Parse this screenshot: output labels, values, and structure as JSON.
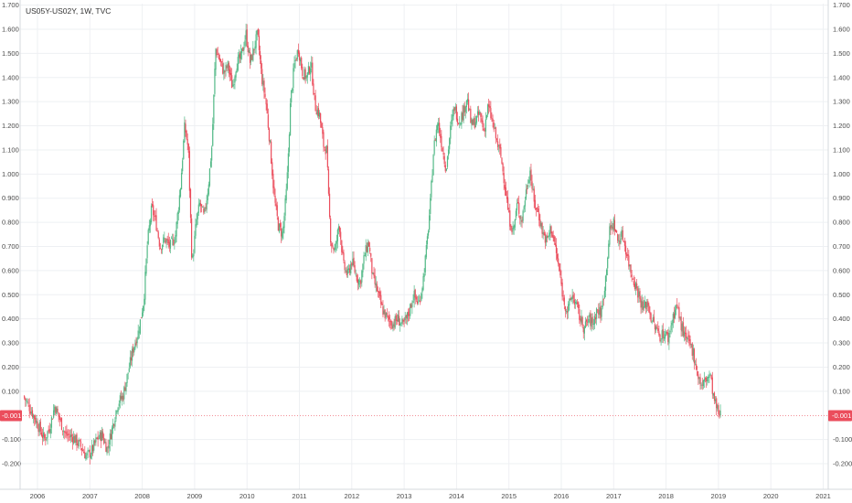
{
  "symbol_label": "US05Y-US02Y, 1W, TVC",
  "last_price_label": "-0.001",
  "colors": {
    "up": "#53b987",
    "down": "#eb4d5c",
    "grid": "#eef0f3",
    "price_tag": "#eb4d5c",
    "axis_text": "#4a4a4a"
  },
  "chart_data": {
    "type": "candlestick",
    "interval": "1W",
    "x_tick_labels": [
      "2006",
      "2007",
      "2008",
      "2009",
      "2010",
      "2011",
      "2012",
      "2013",
      "2014",
      "2015",
      "2016",
      "2017",
      "2018",
      "2019",
      "2020",
      "2021"
    ],
    "y_tick_labels": [
      "1.700",
      "1.600",
      "1.500",
      "1.400",
      "1.300",
      "1.200",
      "1.100",
      "1.000",
      "0.900",
      "0.800",
      "0.700",
      "0.600",
      "0.500",
      "0.400",
      "0.300",
      "0.200",
      "0.100",
      "-0.100",
      "-0.200"
    ],
    "ylim": [
      -0.26,
      1.7
    ],
    "xlim": [
      2005.75,
      2021.1
    ],
    "last_value": -0.001,
    "grid": true,
    "price_path": [
      [
        2005.75,
        0.08
      ],
      [
        2005.9,
        0.02
      ],
      [
        2006.05,
        -0.05
      ],
      [
        2006.15,
        -0.1
      ],
      [
        2006.25,
        -0.05
      ],
      [
        2006.35,
        0.04
      ],
      [
        2006.45,
        -0.02
      ],
      [
        2006.55,
        -0.08
      ],
      [
        2006.7,
        -0.09
      ],
      [
        2006.85,
        -0.13
      ],
      [
        2006.95,
        -0.17
      ],
      [
        2007.05,
        -0.15
      ],
      [
        2007.15,
        -0.1
      ],
      [
        2007.25,
        -0.08
      ],
      [
        2007.35,
        -0.14
      ],
      [
        2007.45,
        -0.05
      ],
      [
        2007.55,
        0.05
      ],
      [
        2007.65,
        0.08
      ],
      [
        2007.75,
        0.18
      ],
      [
        2007.85,
        0.28
      ],
      [
        2007.95,
        0.35
      ],
      [
        2008.05,
        0.48
      ],
      [
        2008.12,
        0.72
      ],
      [
        2008.2,
        0.86
      ],
      [
        2008.28,
        0.8
      ],
      [
        2008.36,
        0.7
      ],
      [
        2008.45,
        0.73
      ],
      [
        2008.55,
        0.7
      ],
      [
        2008.65,
        0.74
      ],
      [
        2008.75,
        0.95
      ],
      [
        2008.83,
        1.2
      ],
      [
        2008.9,
        1.1
      ],
      [
        2008.97,
        0.62
      ],
      [
        2009.05,
        0.8
      ],
      [
        2009.12,
        0.88
      ],
      [
        2009.2,
        0.82
      ],
      [
        2009.28,
        0.95
      ],
      [
        2009.35,
        1.12
      ],
      [
        2009.42,
        1.52
      ],
      [
        2009.5,
        1.47
      ],
      [
        2009.58,
        1.42
      ],
      [
        2009.66,
        1.45
      ],
      [
        2009.74,
        1.36
      ],
      [
        2009.82,
        1.46
      ],
      [
        2009.9,
        1.48
      ],
      [
        2010.0,
        1.58
      ],
      [
        2010.08,
        1.46
      ],
      [
        2010.15,
        1.52
      ],
      [
        2010.22,
        1.58
      ],
      [
        2010.3,
        1.4
      ],
      [
        2010.38,
        1.3
      ],
      [
        2010.46,
        1.12
      ],
      [
        2010.54,
        0.9
      ],
      [
        2010.62,
        0.78
      ],
      [
        2010.7,
        0.75
      ],
      [
        2010.78,
        0.95
      ],
      [
        2010.85,
        1.3
      ],
      [
        2010.92,
        1.45
      ],
      [
        2011.0,
        1.52
      ],
      [
        2011.08,
        1.42
      ],
      [
        2011.16,
        1.4
      ],
      [
        2011.24,
        1.46
      ],
      [
        2011.32,
        1.28
      ],
      [
        2011.4,
        1.25
      ],
      [
        2011.48,
        1.12
      ],
      [
        2011.54,
        1.1
      ],
      [
        2011.58,
        0.88
      ],
      [
        2011.62,
        0.72
      ],
      [
        2011.7,
        0.68
      ],
      [
        2011.78,
        0.8
      ],
      [
        2011.86,
        0.62
      ],
      [
        2011.94,
        0.58
      ],
      [
        2012.02,
        0.64
      ],
      [
        2012.1,
        0.58
      ],
      [
        2012.18,
        0.55
      ],
      [
        2012.26,
        0.66
      ],
      [
        2012.34,
        0.72
      ],
      [
        2012.42,
        0.57
      ],
      [
        2012.5,
        0.52
      ],
      [
        2012.6,
        0.44
      ],
      [
        2012.7,
        0.4
      ],
      [
        2012.8,
        0.38
      ],
      [
        2012.9,
        0.4
      ],
      [
        2013.0,
        0.37
      ],
      [
        2013.1,
        0.42
      ],
      [
        2013.2,
        0.5
      ],
      [
        2013.3,
        0.46
      ],
      [
        2013.38,
        0.56
      ],
      [
        2013.45,
        0.7
      ],
      [
        2013.52,
        0.88
      ],
      [
        2013.58,
        1.1
      ],
      [
        2013.66,
        1.22
      ],
      [
        2013.74,
        1.12
      ],
      [
        2013.82,
        1.02
      ],
      [
        2013.9,
        1.18
      ],
      [
        2013.98,
        1.28
      ],
      [
        2014.06,
        1.22
      ],
      [
        2014.14,
        1.25
      ],
      [
        2014.22,
        1.32
      ],
      [
        2014.3,
        1.2
      ],
      [
        2014.38,
        1.22
      ],
      [
        2014.46,
        1.25
      ],
      [
        2014.54,
        1.18
      ],
      [
        2014.62,
        1.28
      ],
      [
        2014.7,
        1.22
      ],
      [
        2014.78,
        1.14
      ],
      [
        2014.86,
        1.08
      ],
      [
        2014.94,
        0.96
      ],
      [
        2015.02,
        0.82
      ],
      [
        2015.1,
        0.76
      ],
      [
        2015.18,
        0.88
      ],
      [
        2015.26,
        0.8
      ],
      [
        2015.34,
        0.92
      ],
      [
        2015.42,
        1.02
      ],
      [
        2015.5,
        0.88
      ],
      [
        2015.58,
        0.84
      ],
      [
        2015.66,
        0.76
      ],
      [
        2015.74,
        0.72
      ],
      [
        2015.82,
        0.78
      ],
      [
        2015.9,
        0.7
      ],
      [
        2015.98,
        0.6
      ],
      [
        2016.06,
        0.48
      ],
      [
        2016.14,
        0.43
      ],
      [
        2016.22,
        0.5
      ],
      [
        2016.3,
        0.46
      ],
      [
        2016.38,
        0.4
      ],
      [
        2016.46,
        0.36
      ],
      [
        2016.54,
        0.4
      ],
      [
        2016.62,
        0.38
      ],
      [
        2016.7,
        0.44
      ],
      [
        2016.78,
        0.42
      ],
      [
        2016.86,
        0.56
      ],
      [
        2016.94,
        0.76
      ],
      [
        2017.02,
        0.8
      ],
      [
        2017.1,
        0.72
      ],
      [
        2017.18,
        0.75
      ],
      [
        2017.26,
        0.68
      ],
      [
        2017.34,
        0.6
      ],
      [
        2017.42,
        0.55
      ],
      [
        2017.5,
        0.5
      ],
      [
        2017.58,
        0.44
      ],
      [
        2017.66,
        0.47
      ],
      [
        2017.74,
        0.4
      ],
      [
        2017.82,
        0.36
      ],
      [
        2017.9,
        0.33
      ],
      [
        2017.98,
        0.34
      ],
      [
        2018.06,
        0.32
      ],
      [
        2018.14,
        0.4
      ],
      [
        2018.22,
        0.46
      ],
      [
        2018.3,
        0.38
      ],
      [
        2018.38,
        0.32
      ],
      [
        2018.46,
        0.3
      ],
      [
        2018.54,
        0.26
      ],
      [
        2018.62,
        0.17
      ],
      [
        2018.7,
        0.12
      ],
      [
        2018.78,
        0.15
      ],
      [
        2018.86,
        0.17
      ],
      [
        2018.92,
        0.08
      ],
      [
        2018.98,
        0.03
      ],
      [
        2019.04,
        -0.001
      ]
    ]
  }
}
